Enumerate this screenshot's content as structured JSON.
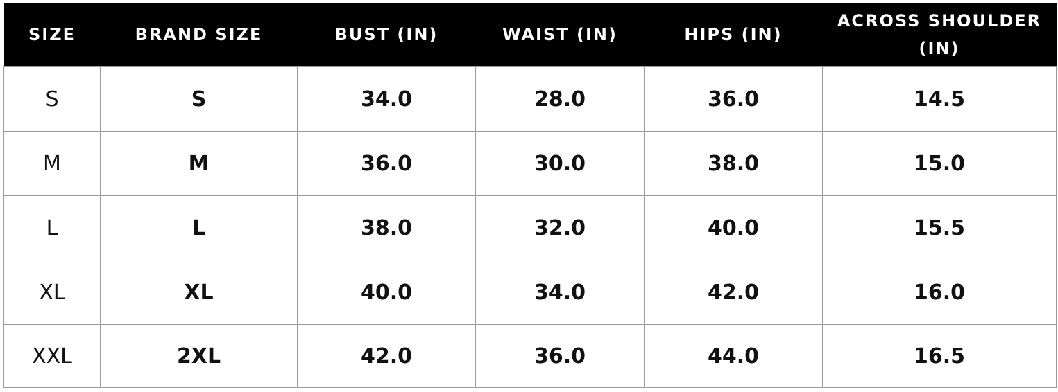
{
  "size_chart": {
    "headers": [
      "SIZE",
      "BRAND SIZE",
      "BUST (IN)",
      "WAIST (IN)",
      "HIPS (IN)",
      "ACROSS SHOULDER (IN)"
    ],
    "rows": [
      [
        "S",
        "S",
        "34.0",
        "28.0",
        "36.0",
        "14.5"
      ],
      [
        "M",
        "M",
        "36.0",
        "30.0",
        "38.0",
        "15.0"
      ],
      [
        "L",
        "L",
        "38.0",
        "32.0",
        "40.0",
        "15.5"
      ],
      [
        "XL",
        "XL",
        "40.0",
        "34.0",
        "42.0",
        "16.0"
      ],
      [
        "XXL",
        "2XL",
        "42.0",
        "36.0",
        "44.0",
        "16.5"
      ]
    ]
  }
}
